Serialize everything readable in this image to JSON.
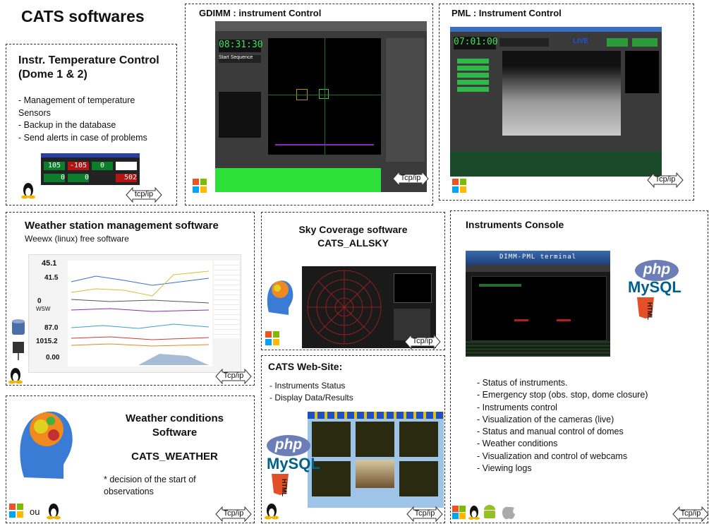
{
  "title": "CATS softwares",
  "panels": {
    "temperature": {
      "title": "Instr. Temperature Control",
      "subtitle": "(Dome 1 & 2)",
      "items": [
        "- Management  of temperature",
        "Sensors",
        "- Backup in the database",
        "- Send alerts in case of problems"
      ],
      "readings": [
        "105",
        "-105",
        "0",
        "0",
        "0",
        "502"
      ],
      "link": "tcp/ip"
    },
    "gdimm": {
      "title": "GDIMM : instrument Control",
      "clock": "08:31:30",
      "button": "Start Sequence",
      "link": "Tcp/ip"
    },
    "pml": {
      "title": "PML : Instrument Control",
      "clock": "07:01:00",
      "live": "LIVE",
      "link": "Tcp/ip"
    },
    "weather_station": {
      "title": "Weather station management software",
      "subtitle": "Weewx (linux) free  software",
      "readings": [
        "45.1",
        "41.5",
        "0",
        "WSW",
        "87.0",
        "1015.2",
        "0.00"
      ],
      "link": "Tcp/ip"
    },
    "allsky": {
      "title": "Sky Coverage software",
      "name": "CATS_ALLSKY",
      "link": "Tcp/ip"
    },
    "website": {
      "title": "CATS Web-Site:",
      "items": [
        "- Instruments Status",
        "- Display Data/Results"
      ],
      "link": "Tcp/ip"
    },
    "console": {
      "title": "Instruments Console",
      "terminal": "DIMM-PML terminal",
      "items": [
        "- Status of instruments.",
        "- Emergency stop (obs. stop, dome closure)",
        "- Instruments control",
        "- Visualization of the cameras (live)",
        "- Status and manual control of domes",
        "- Weather conditions",
        "- Visualization and control of webcams",
        "- Viewing logs"
      ],
      "link": "Tcp/ip"
    },
    "weather_conditions": {
      "title": "Weather conditions",
      "title2": "Software",
      "name": "CATS_WEATHER",
      "note": [
        "* decision of the start of",
        "observations"
      ],
      "or": "ou",
      "link": "Tcp/ip"
    }
  },
  "logos": {
    "php": "php",
    "mysql": "MySQL",
    "html": "HTML"
  }
}
